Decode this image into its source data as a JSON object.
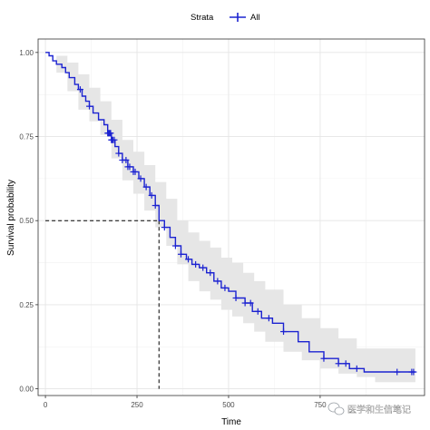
{
  "chart_data": {
    "type": "line",
    "subtype": "kaplan-meier-survival",
    "xlabel": "Time",
    "ylabel": "Survival probability",
    "xlim": [
      -20,
      1035
    ],
    "ylim": [
      -0.02,
      1.04
    ],
    "x_ticks": [
      0,
      250,
      500,
      750
    ],
    "y_ticks": [
      0.0,
      0.25,
      0.5,
      0.75,
      1.0
    ],
    "x_tick_labels": [
      "0",
      "250",
      "500",
      "750"
    ],
    "y_tick_labels": [
      "0.00",
      "0.25",
      "0.50",
      "0.75",
      "1.00"
    ],
    "grid": true,
    "legend": {
      "position": "top",
      "title": "Strata",
      "entries": [
        "All"
      ]
    },
    "median_survival": {
      "x": 310,
      "y": 0.5,
      "style": "dashed"
    },
    "series": [
      {
        "name": "All",
        "color": "#1c23d1",
        "steps": [
          [
            0,
            1.0
          ],
          [
            10,
            0.99
          ],
          [
            20,
            0.975
          ],
          [
            30,
            0.965
          ],
          [
            45,
            0.955
          ],
          [
            55,
            0.94
          ],
          [
            65,
            0.925
          ],
          [
            80,
            0.905
          ],
          [
            90,
            0.89
          ],
          [
            100,
            0.87
          ],
          [
            110,
            0.855
          ],
          [
            120,
            0.84
          ],
          [
            130,
            0.82
          ],
          [
            145,
            0.8
          ],
          [
            160,
            0.785
          ],
          [
            170,
            0.76
          ],
          [
            180,
            0.74
          ],
          [
            190,
            0.72
          ],
          [
            200,
            0.7
          ],
          [
            210,
            0.68
          ],
          [
            225,
            0.66
          ],
          [
            240,
            0.645
          ],
          [
            255,
            0.625
          ],
          [
            270,
            0.6
          ],
          [
            285,
            0.575
          ],
          [
            300,
            0.545
          ],
          [
            310,
            0.5
          ],
          [
            325,
            0.48
          ],
          [
            340,
            0.45
          ],
          [
            355,
            0.425
          ],
          [
            370,
            0.4
          ],
          [
            385,
            0.385
          ],
          [
            400,
            0.37
          ],
          [
            420,
            0.36
          ],
          [
            440,
            0.345
          ],
          [
            460,
            0.32
          ],
          [
            480,
            0.3
          ],
          [
            500,
            0.29
          ],
          [
            520,
            0.27
          ],
          [
            545,
            0.255
          ],
          [
            565,
            0.23
          ],
          [
            590,
            0.21
          ],
          [
            620,
            0.195
          ],
          [
            650,
            0.17
          ],
          [
            690,
            0.14
          ],
          [
            720,
            0.11
          ],
          [
            760,
            0.09
          ],
          [
            800,
            0.075
          ],
          [
            830,
            0.06
          ],
          [
            870,
            0.05
          ],
          [
            1010,
            0.05
          ]
        ],
        "censored_x": [
          95,
          120,
          170,
          172,
          174,
          176,
          178,
          180,
          182,
          184,
          188,
          200,
          210,
          220,
          225,
          230,
          240,
          245,
          260,
          275,
          290,
          300,
          325,
          355,
          370,
          390,
          410,
          430,
          450,
          470,
          490,
          520,
          545,
          560,
          580,
          610,
          650,
          760,
          800,
          820,
          850,
          960,
          1000,
          1005
        ],
        "confidence_band": {
          "color": "#e6e6e6",
          "upper": [
            [
              0,
              1.0
            ],
            [
              30,
              0.99
            ],
            [
              60,
              0.97
            ],
            [
              90,
              0.935
            ],
            [
              120,
              0.895
            ],
            [
              150,
              0.855
            ],
            [
              180,
              0.8
            ],
            [
              210,
              0.74
            ],
            [
              240,
              0.705
            ],
            [
              270,
              0.665
            ],
            [
              300,
              0.615
            ],
            [
              330,
              0.565
            ],
            [
              360,
              0.5
            ],
            [
              390,
              0.465
            ],
            [
              420,
              0.44
            ],
            [
              450,
              0.42
            ],
            [
              480,
              0.39
            ],
            [
              510,
              0.375
            ],
            [
              540,
              0.345
            ],
            [
              570,
              0.32
            ],
            [
              600,
              0.295
            ],
            [
              650,
              0.25
            ],
            [
              700,
              0.21
            ],
            [
              750,
              0.18
            ],
            [
              800,
              0.15
            ],
            [
              850,
              0.12
            ],
            [
              900,
              0.12
            ],
            [
              1010,
              0.12
            ]
          ],
          "lower": [
            [
              0,
              1.0
            ],
            [
              30,
              0.94
            ],
            [
              60,
              0.885
            ],
            [
              90,
              0.83
            ],
            [
              120,
              0.795
            ],
            [
              150,
              0.755
            ],
            [
              180,
              0.685
            ],
            [
              210,
              0.62
            ],
            [
              240,
              0.58
            ],
            [
              270,
              0.53
            ],
            [
              300,
              0.48
            ],
            [
              330,
              0.425
            ],
            [
              360,
              0.37
            ],
            [
              390,
              0.32
            ],
            [
              420,
              0.29
            ],
            [
              450,
              0.265
            ],
            [
              480,
              0.235
            ],
            [
              510,
              0.215
            ],
            [
              540,
              0.195
            ],
            [
              570,
              0.17
            ],
            [
              600,
              0.14
            ],
            [
              650,
              0.11
            ],
            [
              700,
              0.085
            ],
            [
              750,
              0.06
            ],
            [
              800,
              0.045
            ],
            [
              850,
              0.035
            ],
            [
              900,
              0.02
            ],
            [
              1010,
              0.02
            ]
          ]
        }
      }
    ]
  },
  "watermark": {
    "text": "医学和生信笔记",
    "icon": "wechat-icon"
  }
}
